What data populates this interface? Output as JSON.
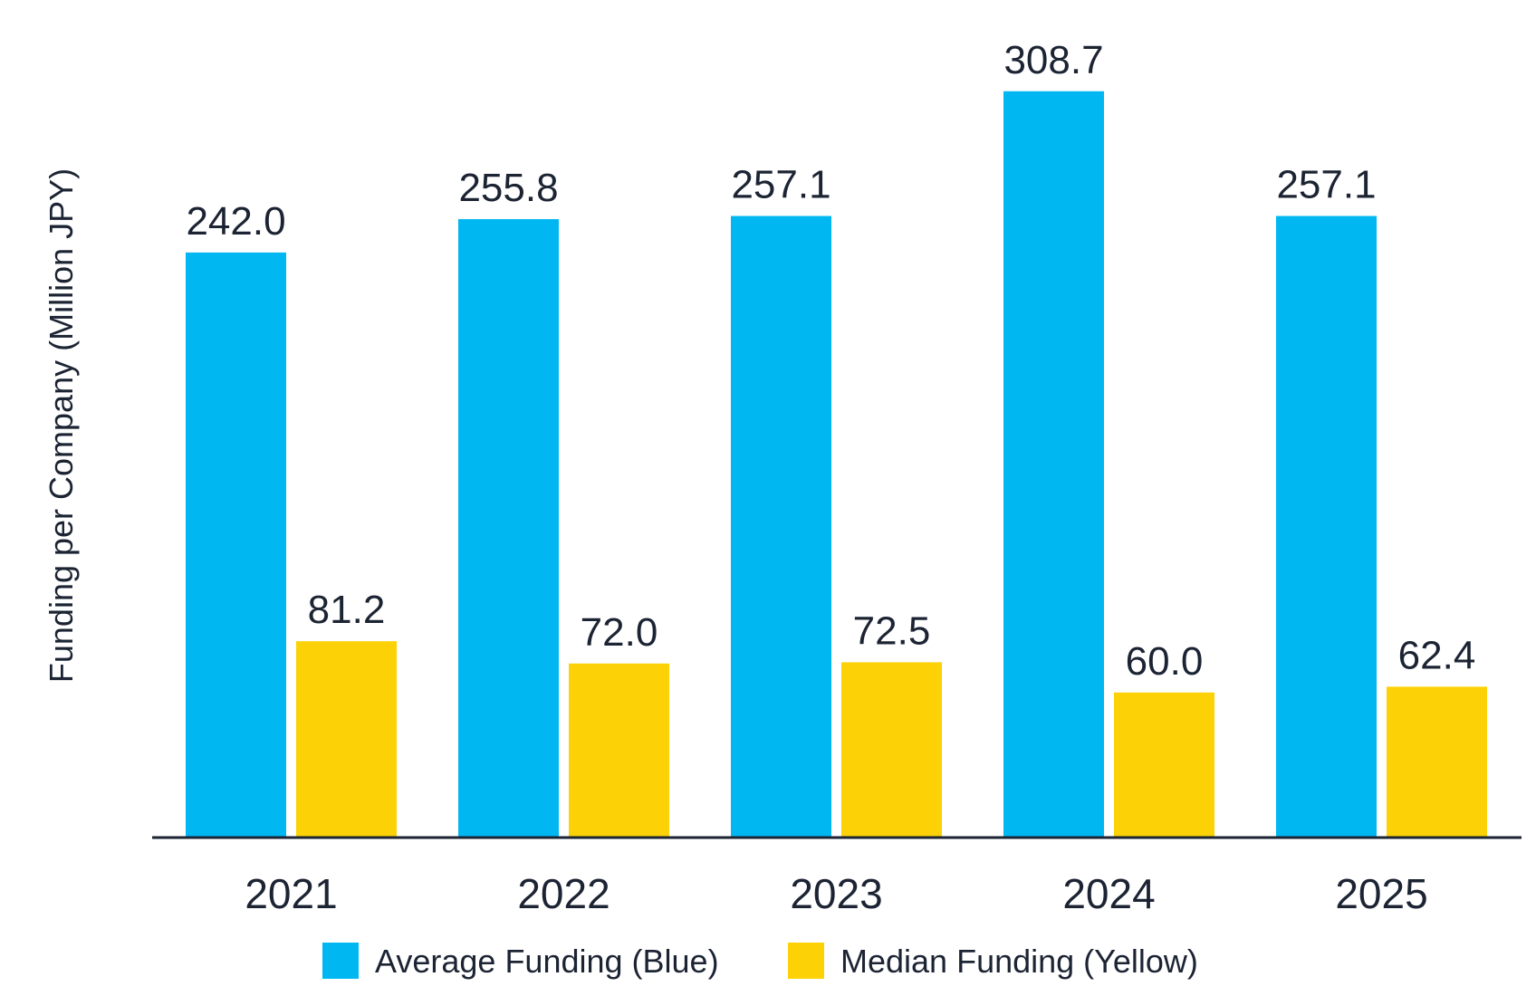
{
  "chart_data": {
    "type": "bar",
    "title": "",
    "xlabel": "",
    "ylabel": "Funding per Company (Million JPY)",
    "ylim": [
      0,
      340
    ],
    "grid": false,
    "legend_position": "bottom-center",
    "categories": [
      "2021",
      "2022",
      "2023",
      "2024",
      "2025"
    ],
    "series": [
      {
        "name": "Average Funding (Blue)",
        "color": "#00B7F1",
        "values": [
          242.0,
          255.8,
          257.1,
          308.7,
          257.1
        ],
        "labels": [
          "242.0",
          "255.8",
          "257.1",
          "308.7",
          "257.1"
        ]
      },
      {
        "name": "Median Funding (Yellow)",
        "color": "#FCD106",
        "values": [
          81.2,
          72.0,
          72.5,
          60.0,
          62.4
        ],
        "labels": [
          "81.2",
          "72.0",
          "72.5",
          "60.0",
          "62.4"
        ]
      }
    ],
    "axis_color": "#1c2433"
  }
}
